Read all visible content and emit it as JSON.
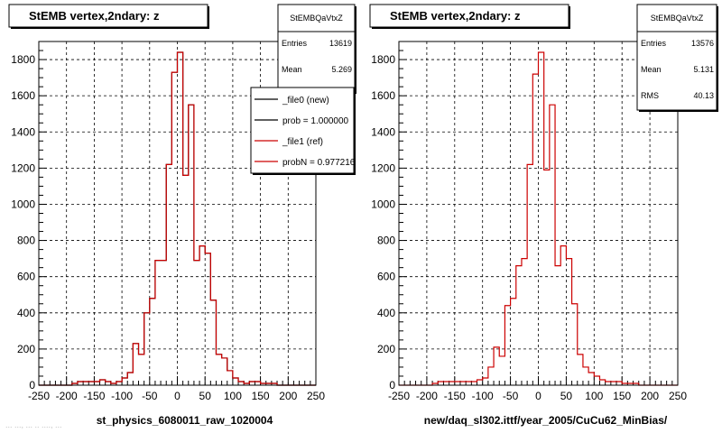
{
  "chart_data": [
    {
      "type": "histogram",
      "title": "StEMB  vertex,2ndary: z",
      "xlabel": "st_physics_6080011_raw_1020004",
      "ylabel": "",
      "xlim": [
        -250,
        250
      ],
      "ylim": [
        0,
        1900
      ],
      "grid": true,
      "x_ticks": [
        -250,
        -200,
        -150,
        -100,
        -50,
        0,
        50,
        100,
        150,
        200,
        250
      ],
      "y_ticks": [
        0,
        200,
        400,
        600,
        800,
        1000,
        1200,
        1400,
        1600,
        1800
      ],
      "bin_edges": [
        -250,
        -240,
        -230,
        -220,
        -210,
        -200,
        -190,
        -180,
        -170,
        -160,
        -150,
        -140,
        -130,
        -120,
        -110,
        -100,
        -90,
        -80,
        -70,
        -60,
        -50,
        -40,
        -30,
        -20,
        -10,
        0,
        10,
        20,
        30,
        40,
        50,
        60,
        70,
        80,
        90,
        100,
        110,
        120,
        130,
        140,
        150,
        160,
        170,
        180,
        190,
        200,
        210,
        220,
        230,
        240,
        250
      ],
      "series": [
        {
          "name": "_file0 (new)",
          "color": "#000000",
          "values": [
            0,
            0,
            0,
            0,
            0,
            0,
            10,
            20,
            20,
            20,
            20,
            30,
            20,
            10,
            20,
            40,
            70,
            230,
            170,
            400,
            480,
            690,
            690,
            1220,
            1730,
            1840,
            1160,
            1550,
            690,
            770,
            730,
            470,
            170,
            150,
            80,
            40,
            20,
            10,
            20,
            20,
            10,
            10,
            10,
            0,
            0,
            0,
            0,
            0,
            0,
            0
          ]
        },
        {
          "name": "_file1 (ref)",
          "color": "#cc0000",
          "values": [
            0,
            0,
            0,
            0,
            0,
            0,
            10,
            20,
            20,
            20,
            20,
            30,
            20,
            10,
            20,
            40,
            70,
            230,
            170,
            400,
            480,
            690,
            690,
            1220,
            1730,
            1840,
            1160,
            1550,
            690,
            770,
            730,
            470,
            170,
            150,
            80,
            40,
            20,
            10,
            20,
            20,
            10,
            10,
            10,
            0,
            0,
            0,
            0,
            0,
            0,
            0
          ]
        }
      ],
      "stats": {
        "name": "StEMBQaVtxZ",
        "rows": [
          {
            "label": "Entries",
            "value": "13619"
          },
          {
            "label": "Mean",
            "value": "5.269"
          }
        ]
      },
      "legend": {
        "position": "top-right",
        "entries": [
          {
            "label": "_file0 (new)",
            "color": "#000000"
          },
          {
            "label": "prob = 1.000000",
            "color": "#000000"
          },
          {
            "label": "_file1 (ref)",
            "color": "#cc0000"
          },
          {
            "label": "probN = 0.977216",
            "color": "#cc0000"
          }
        ]
      }
    },
    {
      "type": "histogram",
      "title": "StEMB  vertex,2ndary: z",
      "xlabel": "new/daq_sl302.ittf/year_2005/CuCu62_MinBias/",
      "ylabel": "",
      "xlim": [
        -250,
        250
      ],
      "ylim": [
        0,
        1900
      ],
      "grid": true,
      "x_ticks": [
        -250,
        -200,
        -150,
        -100,
        -50,
        0,
        50,
        100,
        150,
        200,
        250
      ],
      "y_ticks": [
        0,
        200,
        400,
        600,
        800,
        1000,
        1200,
        1400,
        1600,
        1800
      ],
      "bin_edges": [
        -250,
        -240,
        -230,
        -220,
        -210,
        -200,
        -190,
        -180,
        -170,
        -160,
        -150,
        -140,
        -130,
        -120,
        -110,
        -100,
        -90,
        -80,
        -70,
        -60,
        -50,
        -40,
        -30,
        -20,
        -10,
        0,
        10,
        20,
        30,
        40,
        50,
        60,
        70,
        80,
        90,
        100,
        110,
        120,
        130,
        140,
        150,
        160,
        170,
        180,
        190,
        200,
        210,
        220,
        230,
        240,
        250
      ],
      "series": [
        {
          "name": "",
          "color": "#cc0000",
          "values": [
            0,
            0,
            0,
            0,
            0,
            0,
            10,
            20,
            20,
            20,
            20,
            20,
            20,
            20,
            30,
            40,
            100,
            210,
            160,
            440,
            480,
            660,
            700,
            1220,
            1720,
            1840,
            1190,
            1550,
            660,
            770,
            700,
            450,
            170,
            100,
            70,
            50,
            30,
            20,
            20,
            20,
            10,
            10,
            10,
            0,
            0,
            0,
            0,
            0,
            0,
            0
          ]
        }
      ],
      "stats": {
        "name": "StEMBQaVtxZ",
        "rows": [
          {
            "label": "Entries",
            "value": "13576"
          },
          {
            "label": "Mean",
            "value": "5.131"
          },
          {
            "label": "RMS",
            "value": "40.13"
          }
        ]
      }
    }
  ],
  "footer": "... ..., ... .. ...., ..."
}
